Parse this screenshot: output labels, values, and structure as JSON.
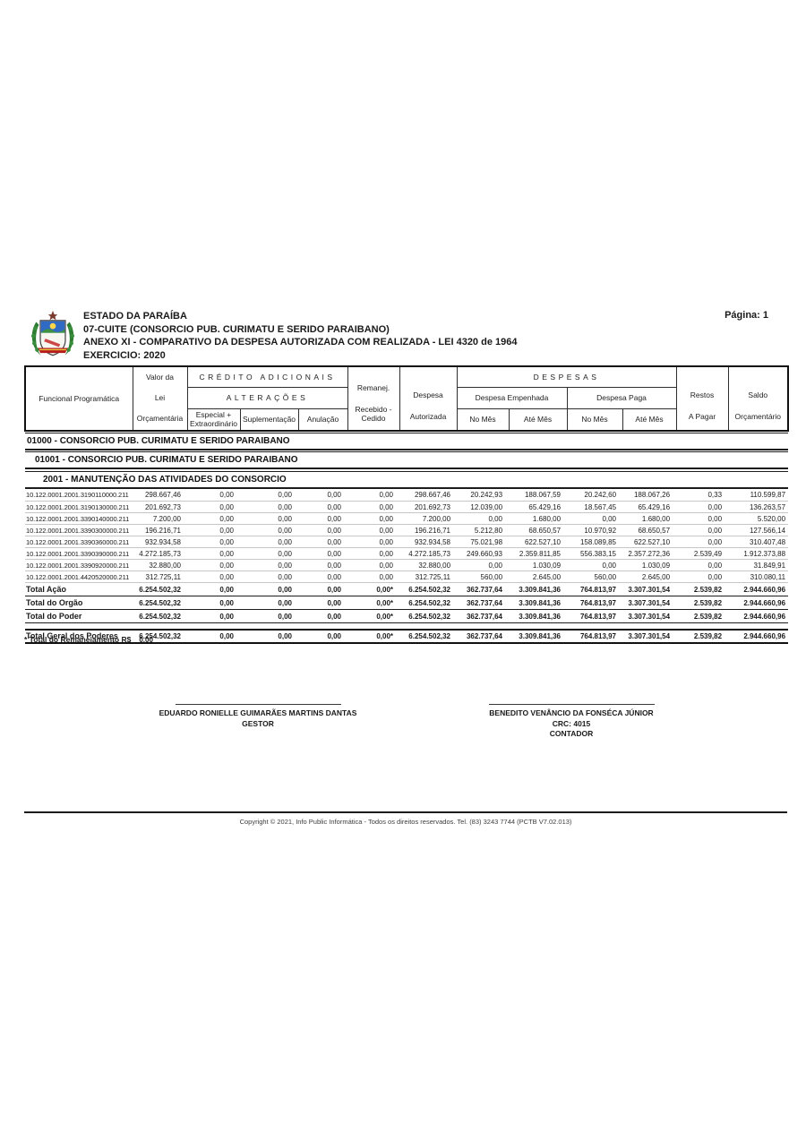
{
  "page": {
    "number_label": "Página: 1"
  },
  "header": {
    "org": "ESTADO DA PARAÍBA",
    "entity": "07-CUITE (CONSORCIO PUB. CURIMATU E SERIDO PARAIBANO)",
    "report_title": "ANEXO XI - COMPARATIVO DA DESPESA AUTORIZADA COM REALIZADA - LEI 4320 de 1964",
    "exercise": "EXERCICIO: 2020",
    "logo_name": "coat-of-arms-paraiba"
  },
  "table": {
    "group_credito": "CRÉDITO ADICIONAIS",
    "group_alteracoes": "ALTERAÇÕES",
    "group_despesas": "DESPESAS",
    "col_funcional": "Funcional Programática",
    "col_valor": [
      "Valor da",
      "Lei",
      "Orçamentária"
    ],
    "col_especial": [
      "Especial +",
      "Extraordinário"
    ],
    "col_suplementacao": "Suplementação",
    "col_anulacao": "Anulação",
    "col_remanej": [
      "Remanej.",
      "Recebido -",
      "Cedido"
    ],
    "col_despesa_autorizada": [
      "Despesa",
      "Autorizada"
    ],
    "col_despesa_empenhada": "Despesa Empenhada",
    "col_despesa_paga": "Despesa Paga",
    "col_no_mes": "No Mês",
    "col_ate_mes": "Até Mês",
    "col_restos": [
      "Restos",
      "A Pagar"
    ],
    "col_saldo": [
      "Saldo",
      "Orçamentário"
    ],
    "sections": [
      {
        "label": "01000 - CONSORCIO PUB. CURIMATU E SERIDO PARAIBANO",
        "indent": 0
      },
      {
        "label": "01001 - CONSORCIO PUB. CURIMATU E SERIDO PARAIBANO",
        "indent": 1
      },
      {
        "label": "2001 - MANUTENÇÃO DAS ATIVIDADES DO CONSORCIO",
        "indent": 2
      }
    ],
    "rows": [
      [
        "10.122.0001.2001.3190110000.211",
        "298.667,46",
        "0,00",
        "0,00",
        "0,00",
        "0,00",
        "298.667,46",
        "20.242,93",
        "188.067,59",
        "20.242,60",
        "188.067,26",
        "0,33",
        "110.599,87"
      ],
      [
        "10.122.0001.2001.3190130000.211",
        "201.692,73",
        "0,00",
        "0,00",
        "0,00",
        "0,00",
        "201.692,73",
        "12.039,00",
        "65.429,16",
        "18.567,45",
        "65.429,16",
        "0,00",
        "136.263,57"
      ],
      [
        "10.122.0001.2001.3390140000.211",
        "7.200,00",
        "0,00",
        "0,00",
        "0,00",
        "0,00",
        "7.200,00",
        "0,00",
        "1.680,00",
        "0,00",
        "1.680,00",
        "0,00",
        "5.520,00"
      ],
      [
        "10.122.0001.2001.3390300000.211",
        "196.216,71",
        "0,00",
        "0,00",
        "0,00",
        "0,00",
        "196.216,71",
        "5.212,80",
        "68.650,57",
        "10.970,92",
        "68.650,57",
        "0,00",
        "127.566,14"
      ],
      [
        "10.122.0001.2001.3390360000.211",
        "932.934,58",
        "0,00",
        "0,00",
        "0,00",
        "0,00",
        "932.934,58",
        "75.021,98",
        "622.527,10",
        "158.089,85",
        "622.527,10",
        "0,00",
        "310.407,48"
      ],
      [
        "10.122.0001.2001.3390390000.211",
        "4.272.185,73",
        "0,00",
        "0,00",
        "0,00",
        "0,00",
        "4.272.185,73",
        "249.660,93",
        "2.359.811,85",
        "556.383,15",
        "2.357.272,36",
        "2.539,49",
        "1.912.373,88"
      ],
      [
        "10.122.0001.2001.3390920000.211",
        "32.880,00",
        "0,00",
        "0,00",
        "0,00",
        "0,00",
        "32.880,00",
        "0,00",
        "1.030,09",
        "0,00",
        "1.030,09",
        "0,00",
        "31.849,91"
      ],
      [
        "10.122.0001.2001.4420520000.211",
        "312.725,11",
        "0,00",
        "0,00",
        "0,00",
        "0,00",
        "312.725,11",
        "560,00",
        "2.645,00",
        "560,00",
        "2.645,00",
        "0,00",
        "310.080,11"
      ]
    ],
    "totals": [
      {
        "label": "Total Ação",
        "gap_before": false,
        "heavy": false,
        "values": [
          "6.254.502,32",
          "0,00",
          "0,00",
          "0,00",
          "0,00*",
          "6.254.502,32",
          "362.737,64",
          "3.309.841,36",
          "764.813,97",
          "3.307.301,54",
          "2.539,82",
          "2.944.660,96"
        ]
      },
      {
        "label": "Total do Orgão",
        "gap_before": false,
        "heavy": false,
        "values": [
          "6.254.502,32",
          "0,00",
          "0,00",
          "0,00",
          "0,00*",
          "6.254.502,32",
          "362.737,64",
          "3.309.841,36",
          "764.813,97",
          "3.307.301,54",
          "2.539,82",
          "2.944.660,96"
        ]
      },
      {
        "label": "Total do Poder",
        "gap_before": false,
        "heavy": false,
        "values": [
          "6.254.502,32",
          "0,00",
          "0,00",
          "0,00",
          "0,00*",
          "6.254.502,32",
          "362.737,64",
          "3.309.841,36",
          "764.813,97",
          "3.307.301,54",
          "2.539,82",
          "2.944.660,96"
        ]
      },
      {
        "label": "Total Geral dos Poderes",
        "gap_before": true,
        "heavy": true,
        "values": [
          "6.254.502,32",
          "0,00",
          "0,00",
          "0,00",
          "0,00*",
          "6.254.502,32",
          "362.737,64",
          "3.309.841,36",
          "764.813,97",
          "3.307.301,54",
          "2.539,82",
          "2.944.660,96"
        ]
      }
    ]
  },
  "footnote": {
    "label": "* Total do Remanejamento R$",
    "value": "0,00"
  },
  "signatures": [
    {
      "name": "EDUARDO RONIELLE GUIMARÃES MARTINS DANTAS",
      "line2": "GESTOR",
      "line3": ""
    },
    {
      "name": "BENEDITO VENÂNCIO DA FONSÉCA JÚNIOR",
      "line2": "CRC: 4015",
      "line3": "CONTADOR"
    }
  ],
  "footer": {
    "copyright": "Copyright © 2021, Info Public Informática - Todos os direitos reservados. Tel. (83) 3243 7744 (PCTB V7.02.013)"
  },
  "colors": {
    "border_dark": "#111111",
    "row_separator": "#c7c7c7",
    "section_shadow": "#b5b5b5"
  }
}
